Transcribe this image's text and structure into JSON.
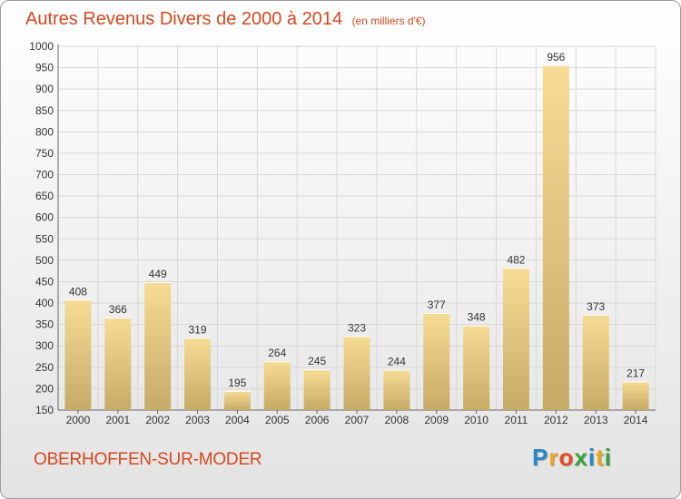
{
  "header": {
    "title": "Autres Revenus Divers de 2000 à 2014",
    "unit": "(en milliers d'€)"
  },
  "footer": {
    "place": "OBERHOFFEN-SUR-MODER",
    "logo_letters": [
      "P",
      "r",
      "o",
      "x",
      "i",
      "t",
      "i"
    ],
    "logo_colors": [
      "#2a86c8",
      "#f2a11a",
      "#e84a1c",
      "#3aa13a",
      "#2a86c8",
      "#f2a11a",
      "#3aa13a"
    ]
  },
  "chart_data": {
    "type": "bar",
    "categories": [
      "2000",
      "2001",
      "2002",
      "2003",
      "2004",
      "2005",
      "2006",
      "2007",
      "2008",
      "2009",
      "2010",
      "2011",
      "2012",
      "2013",
      "2014"
    ],
    "values": [
      408,
      366,
      449,
      319,
      195,
      264,
      245,
      323,
      244,
      377,
      348,
      482,
      956,
      373,
      217
    ],
    "ylim": [
      150,
      1000
    ],
    "yticks": [
      150,
      200,
      250,
      300,
      350,
      400,
      450,
      500,
      550,
      600,
      650,
      700,
      750,
      800,
      850,
      900,
      950,
      1000
    ],
    "grid": true,
    "colors": {
      "bar_light": "#f6dc95",
      "bar_dark": "#c5ab66",
      "grid": "#d8d8d8"
    }
  }
}
